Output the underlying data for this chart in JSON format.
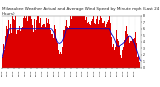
{
  "title": "Milwaukee Weather Actual and Average Wind Speed by Minute mph (Last 24 Hours)",
  "title_fontsize": 3.0,
  "background_color": "#ffffff",
  "plot_background": "#ffffff",
  "grid_color": "#cccccc",
  "bar_color": "#dd0000",
  "line_color": "#0000cc",
  "ylim": [
    0,
    8
  ],
  "yticks": [
    0,
    1,
    2,
    3,
    4,
    5,
    6,
    7,
    8
  ],
  "n_points": 1440,
  "seed": 7,
  "figsize": [
    1.6,
    0.87
  ],
  "dpi": 100
}
